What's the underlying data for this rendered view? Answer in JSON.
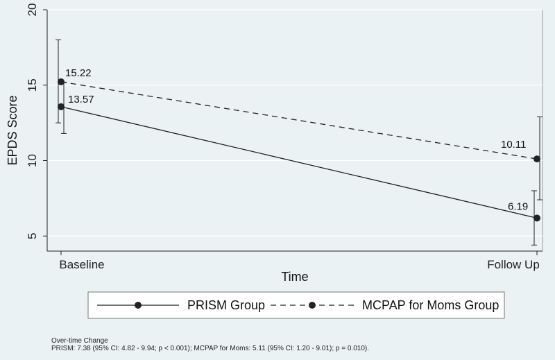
{
  "chart_data": {
    "type": "line",
    "categories": [
      "Baseline",
      "Follow Up"
    ],
    "xlabel": "Time",
    "ylabel": "EPDS Score",
    "ylim": [
      4,
      20
    ],
    "yticks": [
      5,
      10,
      15,
      20
    ],
    "grid": true,
    "legend_position": "bottom",
    "series": [
      {
        "name": "PRISM Group",
        "style": "solid",
        "values": [
          13.57,
          6.19
        ],
        "labels": [
          "13.57",
          "6.19"
        ],
        "ci_low": [
          11.8,
          4.4
        ],
        "ci_high": [
          15.2,
          8.0
        ]
      },
      {
        "name": "MCPAP for Moms Group",
        "style": "dashed",
        "values": [
          15.22,
          10.11
        ],
        "labels": [
          "15.22",
          "10.11"
        ],
        "ci_low": [
          12.5,
          7.4
        ],
        "ci_high": [
          18.0,
          12.9
        ]
      }
    ],
    "colors": {
      "line": "#222222",
      "grid": "#ffffff",
      "plot_bg": "#eaf2f3"
    }
  },
  "footnote": {
    "line1": "Over-time Change",
    "line2": "PRISM: 7.38 (95% CI: 4.82 - 9.94; p < 0.001); MCPAP for Moms: 5.11 (95% CI: 1.20 - 9.01); p = 0.010)."
  }
}
